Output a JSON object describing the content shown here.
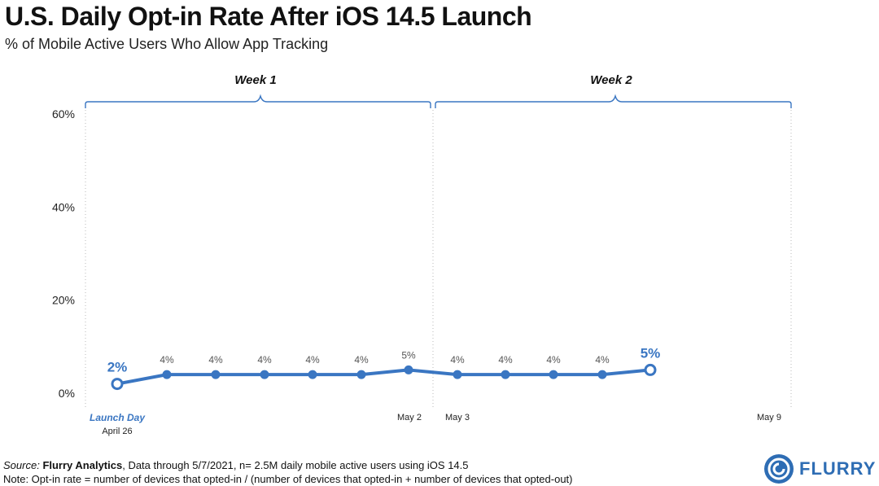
{
  "header": {
    "title": "U.S. Daily Opt-in Rate After iOS 14.5 Launch",
    "subtitle": "% of Mobile Active Users Who Allow App Tracking"
  },
  "chart_data": {
    "type": "line",
    "title": "U.S. Daily Opt-in Rate After iOS 14.5 Launch",
    "subtitle": "% of Mobile Active Users Who Allow App Tracking",
    "ylim": [
      0,
      60
    ],
    "yticks": [
      "0%",
      "20%",
      "40%",
      "60%"
    ],
    "ytick_values": [
      0,
      20,
      40,
      60
    ],
    "grid": false,
    "series": [
      {
        "values": [
          2,
          4,
          4,
          4,
          4,
          4,
          5,
          4,
          4,
          4,
          4,
          5
        ],
        "labels": [
          "2%",
          "4%",
          "4%",
          "4%",
          "4%",
          "4%",
          "5%",
          "4%",
          "4%",
          "4%",
          "4%",
          "5%"
        ],
        "color": "#3a76c2"
      }
    ],
    "weeks": [
      {
        "label": "Week 1"
      },
      {
        "label": "Week 2"
      }
    ],
    "x_annotations": {
      "launch_day": "Launch Day",
      "start_date": "April 26",
      "week1_end": "May 2",
      "week2_start": "May 3",
      "week2_end": "May 9"
    }
  },
  "footer": {
    "source_label": "Source:",
    "source_name": "Flurry Analytics",
    "source_rest": ", Data through 5/7/2021, n= 2.5M daily mobile active users using iOS 14.5",
    "note": "Note: Opt-in rate = number of devices that opted-in / (number of devices that opted-in + number of devices that opted-out)"
  },
  "logo": {
    "text": "FLURRY",
    "color": "#2e6db4"
  }
}
